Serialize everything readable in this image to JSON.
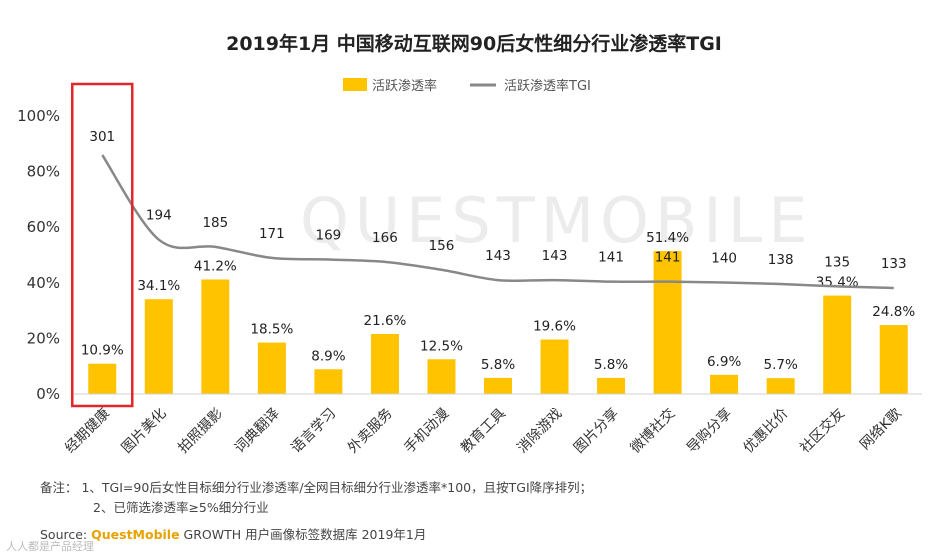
{
  "chart_data": {
    "type": "bar",
    "title": "2019年1月 中国移动互联网90后女性细分行业渗透率TGI",
    "categories": [
      "经期健康",
      "图片美化",
      "拍照摄影",
      "词典翻译",
      "语言学习",
      "外卖服务",
      "手机动漫",
      "教育工具",
      "消除游戏",
      "图片分享",
      "微博社交",
      "导购分享",
      "优惠比价",
      "社区交友",
      "网络K歌"
    ],
    "series": [
      {
        "name": "活跃渗透率",
        "kind": "bar",
        "values": [
          10.9,
          34.1,
          41.2,
          18.5,
          8.9,
          21.6,
          12.5,
          5.8,
          19.6,
          5.8,
          51.4,
          6.9,
          5.7,
          35.4,
          24.8
        ],
        "labels": [
          "10.9%",
          "34.1%",
          "41.2%",
          "18.5%",
          "8.9%",
          "21.6%",
          "12.5%",
          "5.8%",
          "19.6%",
          "5.8%",
          "51.4%",
          "6.9%",
          "5.7%",
          "35.4%",
          "24.8%"
        ],
        "color": "#FFC300"
      },
      {
        "name": "活跃渗透率TGI",
        "kind": "line",
        "values": [
          301,
          194,
          185,
          171,
          169,
          166,
          156,
          143,
          143,
          141,
          141,
          140,
          138,
          135,
          133
        ],
        "labels": [
          "301",
          "194",
          "185",
          "171",
          "169",
          "166",
          "156",
          "143",
          "143",
          "141",
          "141",
          "140",
          "138",
          "135",
          "133"
        ],
        "color": "#888888"
      }
    ],
    "ylim": [
      0,
      100
    ],
    "yticks": [
      "0%",
      "20%",
      "40%",
      "60%",
      "80%",
      "100%"
    ],
    "ytick_values": [
      0,
      20,
      40,
      60,
      80,
      100
    ],
    "legend_position": "top-center",
    "grid": false,
    "highlight_category": "经期健康",
    "highlight_color": "#E3262A"
  },
  "watermark": "QUESTMOBILE",
  "notes": {
    "line1": "备注：  1、TGI=90后女性目标细分行业渗透率/全网目标细分行业渗透率*100，且按TGI降序排列；",
    "line2": "2、已筛选渗透率≥5%细分行业"
  },
  "source": {
    "prefix": "Source: ",
    "brand": "QuestMobile",
    "rest": " GROWTH 用户画像标签数据库 2019年1月"
  },
  "overlay_mark": "人人都是产品经理"
}
